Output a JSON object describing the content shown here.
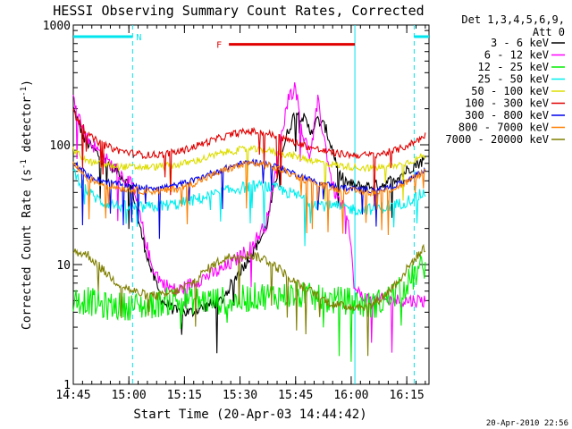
{
  "chart_data": {
    "type": "line",
    "title": "HESSI Observing Summary Count Rates, Corrected",
    "xlabel": "Start Time (20-Apr-03 14:44:42)",
    "ylabel_main": "Corrected Count Rate (s",
    "ylabel_sup1": "-1",
    "ylabel_mid": " detector",
    "ylabel_sup2": "-1",
    "ylabel_end": ")",
    "date_stamp": "20-Apr-2010 22:56",
    "legend_header": [
      "Det 1,3,4,5,6,9,",
      "Att 0"
    ],
    "x_range_min": [
      0,
      96
    ],
    "ylim": [
      1,
      1000
    ],
    "yscale": "log",
    "x_ticks": [
      {
        "v": 0,
        "label": "14:45"
      },
      {
        "v": 15,
        "label": "15:00"
      },
      {
        "v": 30,
        "label": "15:15"
      },
      {
        "v": 45,
        "label": "15:30"
      },
      {
        "v": 60,
        "label": "15:45"
      },
      {
        "v": 75,
        "label": "16:00"
      },
      {
        "v": 90,
        "label": "16:15"
      }
    ],
    "y_ticks": [
      {
        "v": 1,
        "label": "1"
      },
      {
        "v": 10,
        "label": "10"
      },
      {
        "v": 100,
        "label": "100"
      },
      {
        "v": 1000,
        "label": "1000"
      }
    ],
    "annotations": [
      {
        "label": "N",
        "color": "#00e5ee",
        "segments": [
          [
            0,
            16
          ],
          [
            92,
            96
          ]
        ],
        "y": 800
      },
      {
        "label": "F",
        "color": "#e00000",
        "segments": [
          [
            42,
            76
          ]
        ],
        "y": 690
      }
    ],
    "vlines": [
      {
        "x": 16,
        "color": "#00e5ee",
        "dashed": true
      },
      {
        "x": 76,
        "color": "#00e5ee",
        "dashed": false
      },
      {
        "x": 92,
        "color": "#00e5ee",
        "dashed": true
      }
    ],
    "series": [
      {
        "name": "3 - 6 keV",
        "color": "#000000",
        "noise": 0.05,
        "x": [
          0,
          3,
          8,
          12,
          16,
          18,
          21,
          24,
          28,
          32,
          36,
          40,
          44,
          48,
          52,
          54,
          56,
          58,
          60,
          62,
          64,
          66,
          68,
          70,
          72,
          74,
          76,
          80,
          84,
          88,
          92,
          95
        ],
        "y": [
          200,
          110,
          75,
          60,
          42,
          20,
          9,
          5,
          4,
          4,
          4.5,
          5,
          8,
          12,
          20,
          40,
          80,
          130,
          190,
          170,
          130,
          160,
          140,
          90,
          55,
          48,
          45,
          45,
          47,
          55,
          68,
          75
        ]
      },
      {
        "name": "6 - 12 keV",
        "color": "#ff00ff",
        "noise": 0.06,
        "x": [
          0,
          3,
          8,
          12,
          16,
          18,
          21,
          24,
          28,
          32,
          36,
          40,
          44,
          48,
          52,
          54,
          56,
          58,
          60,
          62,
          64,
          66,
          68,
          70,
          72,
          74,
          76,
          80,
          84,
          88,
          92,
          95
        ],
        "y": [
          260,
          120,
          80,
          60,
          45,
          25,
          10,
          7,
          6,
          7,
          8,
          9,
          11,
          14,
          22,
          45,
          110,
          250,
          300,
          120,
          80,
          230,
          100,
          45,
          32,
          27,
          6,
          5,
          5,
          5,
          5,
          5
        ]
      },
      {
        "name": "12 - 25 keV",
        "color": "#00ee00",
        "noise": 0.12,
        "x": [
          0,
          4,
          8,
          12,
          16,
          20,
          26,
          32,
          38,
          44,
          50,
          56,
          62,
          68,
          74,
          80,
          84,
          88,
          92,
          95
        ],
        "y": [
          5,
          5,
          4.5,
          4.5,
          4.5,
          4.5,
          5,
          5,
          5,
          5,
          5.5,
          5.5,
          5.5,
          5,
          5,
          4.5,
          5,
          6,
          8,
          10
        ]
      },
      {
        "name": "25 - 50 keV",
        "color": "#00eeee",
        "noise": 0.05,
        "x": [
          0,
          4,
          8,
          12,
          16,
          20,
          24,
          28,
          32,
          36,
          40,
          44,
          48,
          52,
          56,
          60,
          64,
          68,
          72,
          76,
          80,
          84,
          88,
          92,
          95
        ],
        "y": [
          60,
          40,
          33,
          31,
          30,
          30,
          31,
          32,
          34,
          37,
          40,
          43,
          45,
          45,
          42,
          38,
          34,
          31,
          30,
          29,
          29,
          30,
          32,
          36,
          40
        ]
      },
      {
        "name": "50 - 100 keV",
        "color": "#dddd00",
        "noise": 0.03,
        "x": [
          0,
          4,
          8,
          12,
          16,
          20,
          24,
          28,
          32,
          36,
          40,
          44,
          48,
          52,
          56,
          60,
          64,
          68,
          72,
          76,
          80,
          84,
          88,
          92,
          95
        ],
        "y": [
          90,
          72,
          68,
          66,
          65,
          65,
          66,
          68,
          72,
          78,
          85,
          90,
          92,
          90,
          85,
          80,
          75,
          70,
          67,
          65,
          64,
          65,
          68,
          75,
          82
        ]
      },
      {
        "name": "100 - 300 keV",
        "color": "#e00000",
        "noise": 0.03,
        "x": [
          0,
          4,
          8,
          12,
          16,
          20,
          24,
          28,
          32,
          36,
          40,
          44,
          48,
          52,
          56,
          60,
          64,
          68,
          72,
          76,
          80,
          84,
          88,
          92,
          95
        ],
        "y": [
          190,
          120,
          100,
          90,
          85,
          82,
          83,
          87,
          95,
          105,
          115,
          125,
          130,
          125,
          115,
          105,
          95,
          88,
          84,
          82,
          82,
          85,
          92,
          105,
          120
        ]
      },
      {
        "name": "300 - 800 keV",
        "color": "#0000ee",
        "noise": 0.025,
        "x": [
          0,
          4,
          8,
          12,
          16,
          20,
          24,
          28,
          32,
          36,
          40,
          44,
          48,
          52,
          56,
          60,
          64,
          68,
          72,
          76,
          80,
          84,
          88,
          92,
          95
        ],
        "y": [
          72,
          55,
          50,
          47,
          45,
          44,
          44,
          46,
          50,
          56,
          62,
          68,
          72,
          70,
          64,
          57,
          51,
          47,
          44,
          43,
          42,
          43,
          47,
          55,
          62
        ]
      },
      {
        "name": "800 - 7000 keV",
        "color": "#ff7f00",
        "noise": 0.03,
        "x": [
          0,
          4,
          8,
          12,
          16,
          20,
          24,
          28,
          32,
          36,
          40,
          44,
          48,
          52,
          56,
          60,
          64,
          68,
          72,
          76,
          80,
          84,
          88,
          92,
          95
        ],
        "y": [
          70,
          52,
          47,
          44,
          42,
          41,
          41,
          43,
          47,
          53,
          60,
          66,
          70,
          68,
          62,
          55,
          49,
          45,
          42,
          41,
          40,
          41,
          45,
          53,
          60
        ]
      },
      {
        "name": "7000 - 20000 keV",
        "color": "#7f7f00",
        "noise": 0.04,
        "x": [
          0,
          4,
          8,
          12,
          16,
          20,
          24,
          28,
          32,
          36,
          40,
          44,
          48,
          52,
          56,
          60,
          64,
          68,
          72,
          76,
          80,
          84,
          88,
          92,
          95
        ],
        "y": [
          13,
          12,
          9,
          7,
          6,
          5.5,
          5.5,
          6,
          7,
          9,
          11,
          12,
          12,
          11,
          9,
          7,
          6,
          5,
          4.5,
          4.5,
          4.5,
          5.5,
          7.5,
          11,
          14
        ]
      }
    ]
  }
}
